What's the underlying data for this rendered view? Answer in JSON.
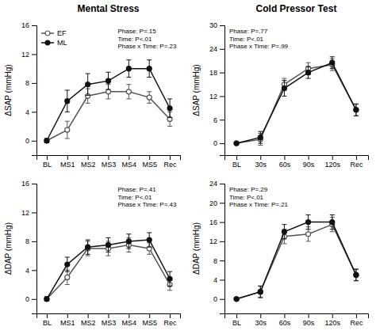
{
  "chart_data": [
    {
      "type": "line",
      "title": "Mental Stress",
      "categories": [
        "BL",
        "MS1",
        "MS2",
        "MS3",
        "MS4",
        "MS5",
        "Rec"
      ],
      "ylabel": "ΔSAP (mmHg)",
      "ylim": [
        -2,
        16
      ],
      "yticks": [
        0,
        4,
        8,
        12,
        16
      ],
      "annotations": [
        "Phase: P=.15\nTime: P<.01\nPhase x Time: P=.23"
      ],
      "legend": "upper left",
      "series": [
        {
          "name": "EF",
          "color": "#555555",
          "marker": "open-circle",
          "values": [
            0,
            1.5,
            6.2,
            6.8,
            6.8,
            6.0,
            3.0
          ],
          "errors": [
            0.3,
            1.2,
            1.0,
            1.0,
            1.0,
            0.8,
            1.0
          ]
        },
        {
          "name": "ML",
          "color": "#111111",
          "marker": "circle",
          "values": [
            0,
            5.5,
            7.8,
            8.3,
            10.0,
            10.0,
            4.5
          ],
          "errors": [
            0.3,
            1.5,
            1.5,
            1.2,
            1.2,
            1.2,
            1.3
          ]
        }
      ]
    },
    {
      "type": "line",
      "title": "Cold Pressor Test",
      "categories": [
        "BL",
        "30s",
        "60s",
        "90s",
        "120s",
        "Rec"
      ],
      "ylabel": "ΔSAP (mmHg)",
      "ylim": [
        -3,
        30
      ],
      "yticks": [
        0,
        6,
        12,
        18,
        24,
        30
      ],
      "annotations": [
        "Phase: P=.77\nTime: P<.01\nPhase x Time: P=.99"
      ],
      "series": [
        {
          "color": "#555555",
          "marker": "open-circle",
          "values": [
            0,
            1.0,
            15.0,
            19.0,
            20.0,
            8.5
          ],
          "errors": [
            0.3,
            1.5,
            1.5,
            1.5,
            1.5,
            1.5
          ]
        },
        {
          "color": "#111111",
          "marker": "circle",
          "values": [
            0,
            1.5,
            14.0,
            18.0,
            20.5,
            8.5
          ],
          "errors": [
            0.3,
            1.5,
            2.0,
            1.5,
            1.5,
            1.5
          ]
        }
      ]
    },
    {
      "type": "line",
      "categories": [
        "BL",
        "MS1",
        "MS2",
        "MS3",
        "MS4",
        "MS5",
        "Rec"
      ],
      "ylabel": "ΔDAP (mmHg)",
      "ylim": [
        -2,
        16
      ],
      "yticks": [
        0,
        4,
        8,
        12,
        16
      ],
      "annotations": [
        "Phase: P=.41\nTime: P<.01\nPhase x Time: P=.43"
      ],
      "series": [
        {
          "color": "#555555",
          "marker": "open-circle",
          "values": [
            0,
            3.0,
            7.0,
            7.0,
            7.5,
            7.0,
            2.0
          ],
          "errors": [
            0.3,
            1.0,
            1.0,
            1.0,
            1.0,
            0.8,
            0.8
          ]
        },
        {
          "color": "#111111",
          "marker": "circle",
          "values": [
            0,
            4.8,
            7.2,
            7.5,
            8.0,
            8.2,
            2.8
          ],
          "errors": [
            0.3,
            1.0,
            1.0,
            1.0,
            1.0,
            1.0,
            1.0
          ]
        }
      ]
    },
    {
      "type": "line",
      "categories": [
        "BL",
        "30s",
        "60s",
        "90s",
        "120s",
        "Rec"
      ],
      "ylabel": "ΔDAP (mmHg)",
      "ylim": [
        -3,
        24
      ],
      "yticks": [
        0,
        4,
        8,
        12,
        16,
        20,
        24
      ],
      "annotations": [
        "Phase: P=.29\nTime: P<.01\nPhase x Time: P=.21"
      ],
      "series": [
        {
          "color": "#555555",
          "marker": "open-circle",
          "values": [
            0,
            1.5,
            13.0,
            13.5,
            15.5,
            5.0
          ],
          "errors": [
            0.3,
            1.2,
            1.5,
            1.5,
            1.5,
            1.2
          ]
        },
        {
          "color": "#111111",
          "marker": "circle",
          "values": [
            0,
            1.5,
            14.0,
            16.0,
            16.0,
            5.0
          ],
          "errors": [
            0.3,
            1.2,
            1.5,
            1.5,
            1.5,
            1.2
          ]
        }
      ]
    }
  ]
}
